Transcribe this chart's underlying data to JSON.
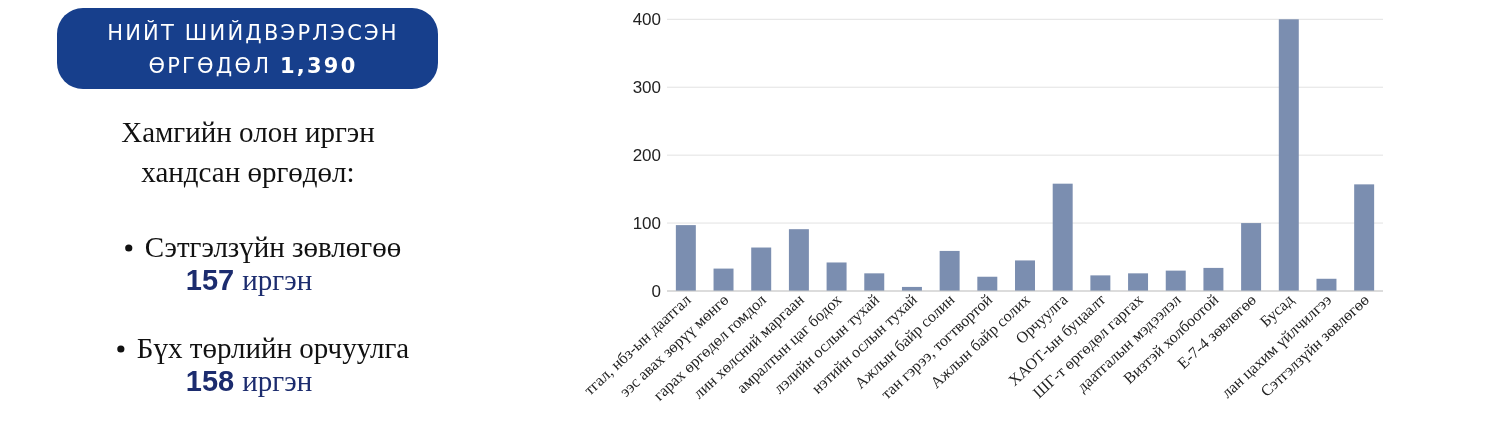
{
  "chart_data": [
    {
      "type": "other",
      "title": "НИЙТ ШИЙДВЭРЛЭСЭН ӨРГӨДӨЛ 1,390",
      "subtitle": "Хамгийн олон иргэн хандсан өргөдөл:",
      "annotations": [
        "Сэтгэлзүйн зөвлөгөө 157 иргэн",
        "Бүх төрлийн орчуулга 158 иргэн"
      ]
    },
    {
      "type": "bar",
      "categories": [
        "тгал, нбз-ын даатгал",
        "ээс авах зөрүү мөнгө",
        "гарах өргөдөл гомдол",
        "лин хөлсний маргаан",
        "амралтын цаг бодох",
        "лэлийн ослын тухай",
        "нэтийн ослын тухай",
        "Ажлын байр солин",
        "тан гэрээ, тогтвортой",
        "Ажлын байр солих",
        "Орчуулга",
        "ХАОТ-ын буцаалт",
        "ШГ-т өргөдөл гаргах",
        "даатгалын мэдээлэл",
        "Визтэй холбоотой",
        "E-7-4 зөвлөгөө",
        "Бусад",
        "лан цахим үйлчилгээ",
        "Сэтгэлзүйн зөвлөгөө"
      ],
      "values": [
        97,
        33,
        64,
        91,
        42,
        26,
        6,
        59,
        21,
        45,
        158,
        23,
        26,
        30,
        34,
        100,
        400,
        18,
        157
      ],
      "color": "#7b8eb0",
      "ylim": [
        0,
        400
      ],
      "yticks": [
        0,
        100,
        200,
        300,
        400
      ],
      "grid": "y"
    }
  ]
}
